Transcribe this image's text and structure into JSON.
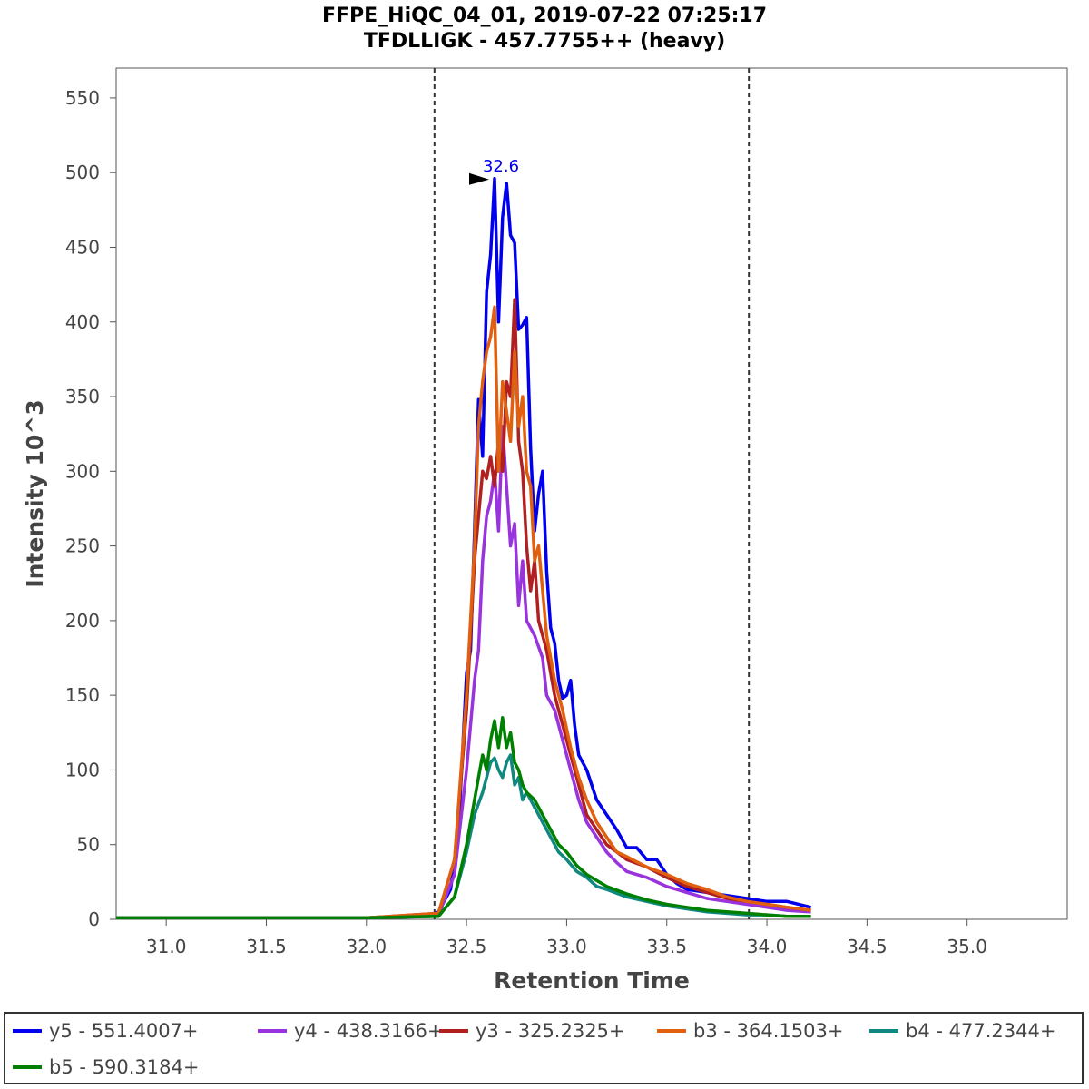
{
  "chart_data": {
    "type": "line",
    "title": "FFPE_HiQC_04_01, 2019-07-22 07:25:17",
    "subtitle": "TFDLLIGK - 457.7755++ (heavy)",
    "xlabel": "Retention Time",
    "ylabel": "Intensity 10^3",
    "xlim": [
      30.75,
      35.5
    ],
    "ylim": [
      0,
      570
    ],
    "xticks": [
      "31.0",
      "31.5",
      "32.0",
      "32.5",
      "33.0",
      "33.5",
      "34.0",
      "34.5",
      "35.0"
    ],
    "yticks": [
      "0",
      "50",
      "100",
      "150",
      "200",
      "250",
      "300",
      "350",
      "400",
      "450",
      "500",
      "550"
    ],
    "grid": false,
    "legend_position": "bottom",
    "boundaries": [
      32.34,
      33.91
    ],
    "annotation": {
      "label": "32.6",
      "x": 32.64,
      "y": 496
    },
    "series": [
      {
        "name": "y5 - 551.4007+",
        "color": "#0000ee",
        "points": [
          [
            30.75,
            1
          ],
          [
            31.5,
            1
          ],
          [
            32.0,
            1
          ],
          [
            32.3,
            2
          ],
          [
            32.36,
            5
          ],
          [
            32.42,
            20
          ],
          [
            32.46,
            60
          ],
          [
            32.5,
            165
          ],
          [
            32.52,
            180
          ],
          [
            32.54,
            260
          ],
          [
            32.56,
            348
          ],
          [
            32.58,
            310
          ],
          [
            32.6,
            420
          ],
          [
            32.62,
            445
          ],
          [
            32.64,
            496
          ],
          [
            32.66,
            400
          ],
          [
            32.68,
            470
          ],
          [
            32.7,
            493
          ],
          [
            32.72,
            458
          ],
          [
            32.74,
            453
          ],
          [
            32.76,
            395
          ],
          [
            32.78,
            398
          ],
          [
            32.8,
            403
          ],
          [
            32.82,
            315
          ],
          [
            32.84,
            260
          ],
          [
            32.86,
            285
          ],
          [
            32.88,
            300
          ],
          [
            32.9,
            233
          ],
          [
            32.92,
            195
          ],
          [
            32.94,
            185
          ],
          [
            32.96,
            160
          ],
          [
            32.98,
            148
          ],
          [
            33.0,
            150
          ],
          [
            33.02,
            160
          ],
          [
            33.04,
            130
          ],
          [
            33.06,
            110
          ],
          [
            33.08,
            105
          ],
          [
            33.1,
            100
          ],
          [
            33.15,
            80
          ],
          [
            33.2,
            70
          ],
          [
            33.25,
            60
          ],
          [
            33.3,
            48
          ],
          [
            33.35,
            48
          ],
          [
            33.4,
            40
          ],
          [
            33.45,
            40
          ],
          [
            33.5,
            30
          ],
          [
            33.55,
            24
          ],
          [
            33.6,
            20
          ],
          [
            33.7,
            18
          ],
          [
            33.8,
            16
          ],
          [
            33.9,
            14
          ],
          [
            34.0,
            12
          ],
          [
            34.1,
            12
          ],
          [
            34.22,
            8
          ]
        ]
      },
      {
        "name": "y4 - 438.3166+",
        "color": "#9933dd",
        "points": [
          [
            30.75,
            1
          ],
          [
            32.0,
            1
          ],
          [
            32.36,
            3
          ],
          [
            32.44,
            30
          ],
          [
            32.5,
            100
          ],
          [
            32.54,
            160
          ],
          [
            32.56,
            180
          ],
          [
            32.58,
            240
          ],
          [
            32.6,
            270
          ],
          [
            32.62,
            280
          ],
          [
            32.64,
            300
          ],
          [
            32.66,
            260
          ],
          [
            32.68,
            330
          ],
          [
            32.7,
            290
          ],
          [
            32.72,
            250
          ],
          [
            32.74,
            265
          ],
          [
            32.76,
            210
          ],
          [
            32.78,
            240
          ],
          [
            32.8,
            200
          ],
          [
            32.84,
            190
          ],
          [
            32.88,
            175
          ],
          [
            32.9,
            150
          ],
          [
            32.94,
            140
          ],
          [
            32.98,
            120
          ],
          [
            33.02,
            100
          ],
          [
            33.06,
            80
          ],
          [
            33.1,
            65
          ],
          [
            33.15,
            55
          ],
          [
            33.2,
            45
          ],
          [
            33.25,
            38
          ],
          [
            33.3,
            32
          ],
          [
            33.4,
            28
          ],
          [
            33.5,
            22
          ],
          [
            33.6,
            18
          ],
          [
            33.7,
            14
          ],
          [
            33.8,
            12
          ],
          [
            33.9,
            10
          ],
          [
            34.0,
            8
          ],
          [
            34.1,
            6
          ],
          [
            34.22,
            5
          ]
        ]
      },
      {
        "name": "y3 - 325.2325+",
        "color": "#b02020",
        "points": [
          [
            30.75,
            1
          ],
          [
            32.0,
            1
          ],
          [
            32.36,
            4
          ],
          [
            32.44,
            40
          ],
          [
            32.5,
            140
          ],
          [
            32.54,
            240
          ],
          [
            32.58,
            300
          ],
          [
            32.6,
            295
          ],
          [
            32.62,
            310
          ],
          [
            32.64,
            290
          ],
          [
            32.66,
            320
          ],
          [
            32.68,
            300
          ],
          [
            32.7,
            360
          ],
          [
            32.72,
            350
          ],
          [
            32.74,
            415
          ],
          [
            32.76,
            320
          ],
          [
            32.78,
            300
          ],
          [
            32.8,
            250
          ],
          [
            32.82,
            220
          ],
          [
            32.84,
            240
          ],
          [
            32.86,
            200
          ],
          [
            32.9,
            180
          ],
          [
            32.94,
            150
          ],
          [
            32.98,
            130
          ],
          [
            33.02,
            110
          ],
          [
            33.06,
            90
          ],
          [
            33.1,
            70
          ],
          [
            33.15,
            60
          ],
          [
            33.2,
            50
          ],
          [
            33.25,
            45
          ],
          [
            33.3,
            40
          ],
          [
            33.4,
            35
          ],
          [
            33.5,
            28
          ],
          [
            33.6,
            22
          ],
          [
            33.7,
            18
          ],
          [
            33.8,
            14
          ],
          [
            33.9,
            12
          ],
          [
            34.0,
            10
          ],
          [
            34.1,
            8
          ],
          [
            34.22,
            6
          ]
        ]
      },
      {
        "name": "b3 - 364.1503+",
        "color": "#e06010",
        "points": [
          [
            30.75,
            1
          ],
          [
            32.0,
            1
          ],
          [
            32.36,
            4
          ],
          [
            32.44,
            40
          ],
          [
            32.5,
            150
          ],
          [
            32.54,
            250
          ],
          [
            32.56,
            330
          ],
          [
            32.58,
            360
          ],
          [
            32.6,
            380
          ],
          [
            32.62,
            390
          ],
          [
            32.64,
            410
          ],
          [
            32.66,
            300
          ],
          [
            32.68,
            360
          ],
          [
            32.7,
            340
          ],
          [
            32.72,
            320
          ],
          [
            32.74,
            380
          ],
          [
            32.76,
            330
          ],
          [
            32.78,
            350
          ],
          [
            32.8,
            300
          ],
          [
            32.82,
            290
          ],
          [
            32.84,
            240
          ],
          [
            32.86,
            250
          ],
          [
            32.9,
            190
          ],
          [
            32.94,
            160
          ],
          [
            32.98,
            140
          ],
          [
            33.02,
            115
          ],
          [
            33.06,
            95
          ],
          [
            33.1,
            80
          ],
          [
            33.15,
            65
          ],
          [
            33.2,
            55
          ],
          [
            33.25,
            45
          ],
          [
            33.3,
            42
          ],
          [
            33.4,
            35
          ],
          [
            33.5,
            30
          ],
          [
            33.6,
            24
          ],
          [
            33.7,
            20
          ],
          [
            33.8,
            15
          ],
          [
            33.9,
            12
          ],
          [
            34.0,
            10
          ],
          [
            34.1,
            8
          ],
          [
            34.22,
            6
          ]
        ]
      },
      {
        "name": "b4 - 477.2344+",
        "color": "#108880",
        "points": [
          [
            30.75,
            1
          ],
          [
            32.0,
            1
          ],
          [
            32.36,
            2
          ],
          [
            32.44,
            15
          ],
          [
            32.5,
            45
          ],
          [
            32.54,
            70
          ],
          [
            32.58,
            85
          ],
          [
            32.6,
            95
          ],
          [
            32.62,
            105
          ],
          [
            32.64,
            108
          ],
          [
            32.66,
            100
          ],
          [
            32.68,
            95
          ],
          [
            32.7,
            105
          ],
          [
            32.72,
            110
          ],
          [
            32.74,
            90
          ],
          [
            32.76,
            95
          ],
          [
            32.78,
            80
          ],
          [
            32.8,
            85
          ],
          [
            32.84,
            75
          ],
          [
            32.88,
            65
          ],
          [
            32.92,
            55
          ],
          [
            32.96,
            45
          ],
          [
            33.0,
            40
          ],
          [
            33.05,
            32
          ],
          [
            33.1,
            28
          ],
          [
            33.15,
            22
          ],
          [
            33.2,
            20
          ],
          [
            33.3,
            15
          ],
          [
            33.4,
            12
          ],
          [
            33.5,
            9
          ],
          [
            33.6,
            7
          ],
          [
            33.7,
            5
          ],
          [
            33.8,
            4
          ],
          [
            33.9,
            3
          ],
          [
            34.0,
            3
          ],
          [
            34.1,
            2
          ],
          [
            34.22,
            2
          ]
        ]
      },
      {
        "name": "b5 - 590.3184+",
        "color": "#008000",
        "points": [
          [
            30.75,
            1
          ],
          [
            32.0,
            1
          ],
          [
            32.36,
            2
          ],
          [
            32.44,
            15
          ],
          [
            32.5,
            50
          ],
          [
            32.54,
            80
          ],
          [
            32.56,
            95
          ],
          [
            32.58,
            110
          ],
          [
            32.6,
            100
          ],
          [
            32.62,
            120
          ],
          [
            32.64,
            133
          ],
          [
            32.66,
            115
          ],
          [
            32.68,
            135
          ],
          [
            32.7,
            115
          ],
          [
            32.72,
            125
          ],
          [
            32.74,
            105
          ],
          [
            32.76,
            100
          ],
          [
            32.78,
            90
          ],
          [
            32.8,
            85
          ],
          [
            32.84,
            80
          ],
          [
            32.88,
            70
          ],
          [
            32.92,
            60
          ],
          [
            32.96,
            50
          ],
          [
            33.0,
            45
          ],
          [
            33.05,
            36
          ],
          [
            33.1,
            30
          ],
          [
            33.15,
            26
          ],
          [
            33.2,
            22
          ],
          [
            33.3,
            17
          ],
          [
            33.4,
            13
          ],
          [
            33.5,
            10
          ],
          [
            33.6,
            8
          ],
          [
            33.7,
            6
          ],
          [
            33.8,
            5
          ],
          [
            33.9,
            4
          ],
          [
            34.0,
            3
          ],
          [
            34.1,
            2
          ],
          [
            34.22,
            2
          ]
        ]
      }
    ]
  }
}
